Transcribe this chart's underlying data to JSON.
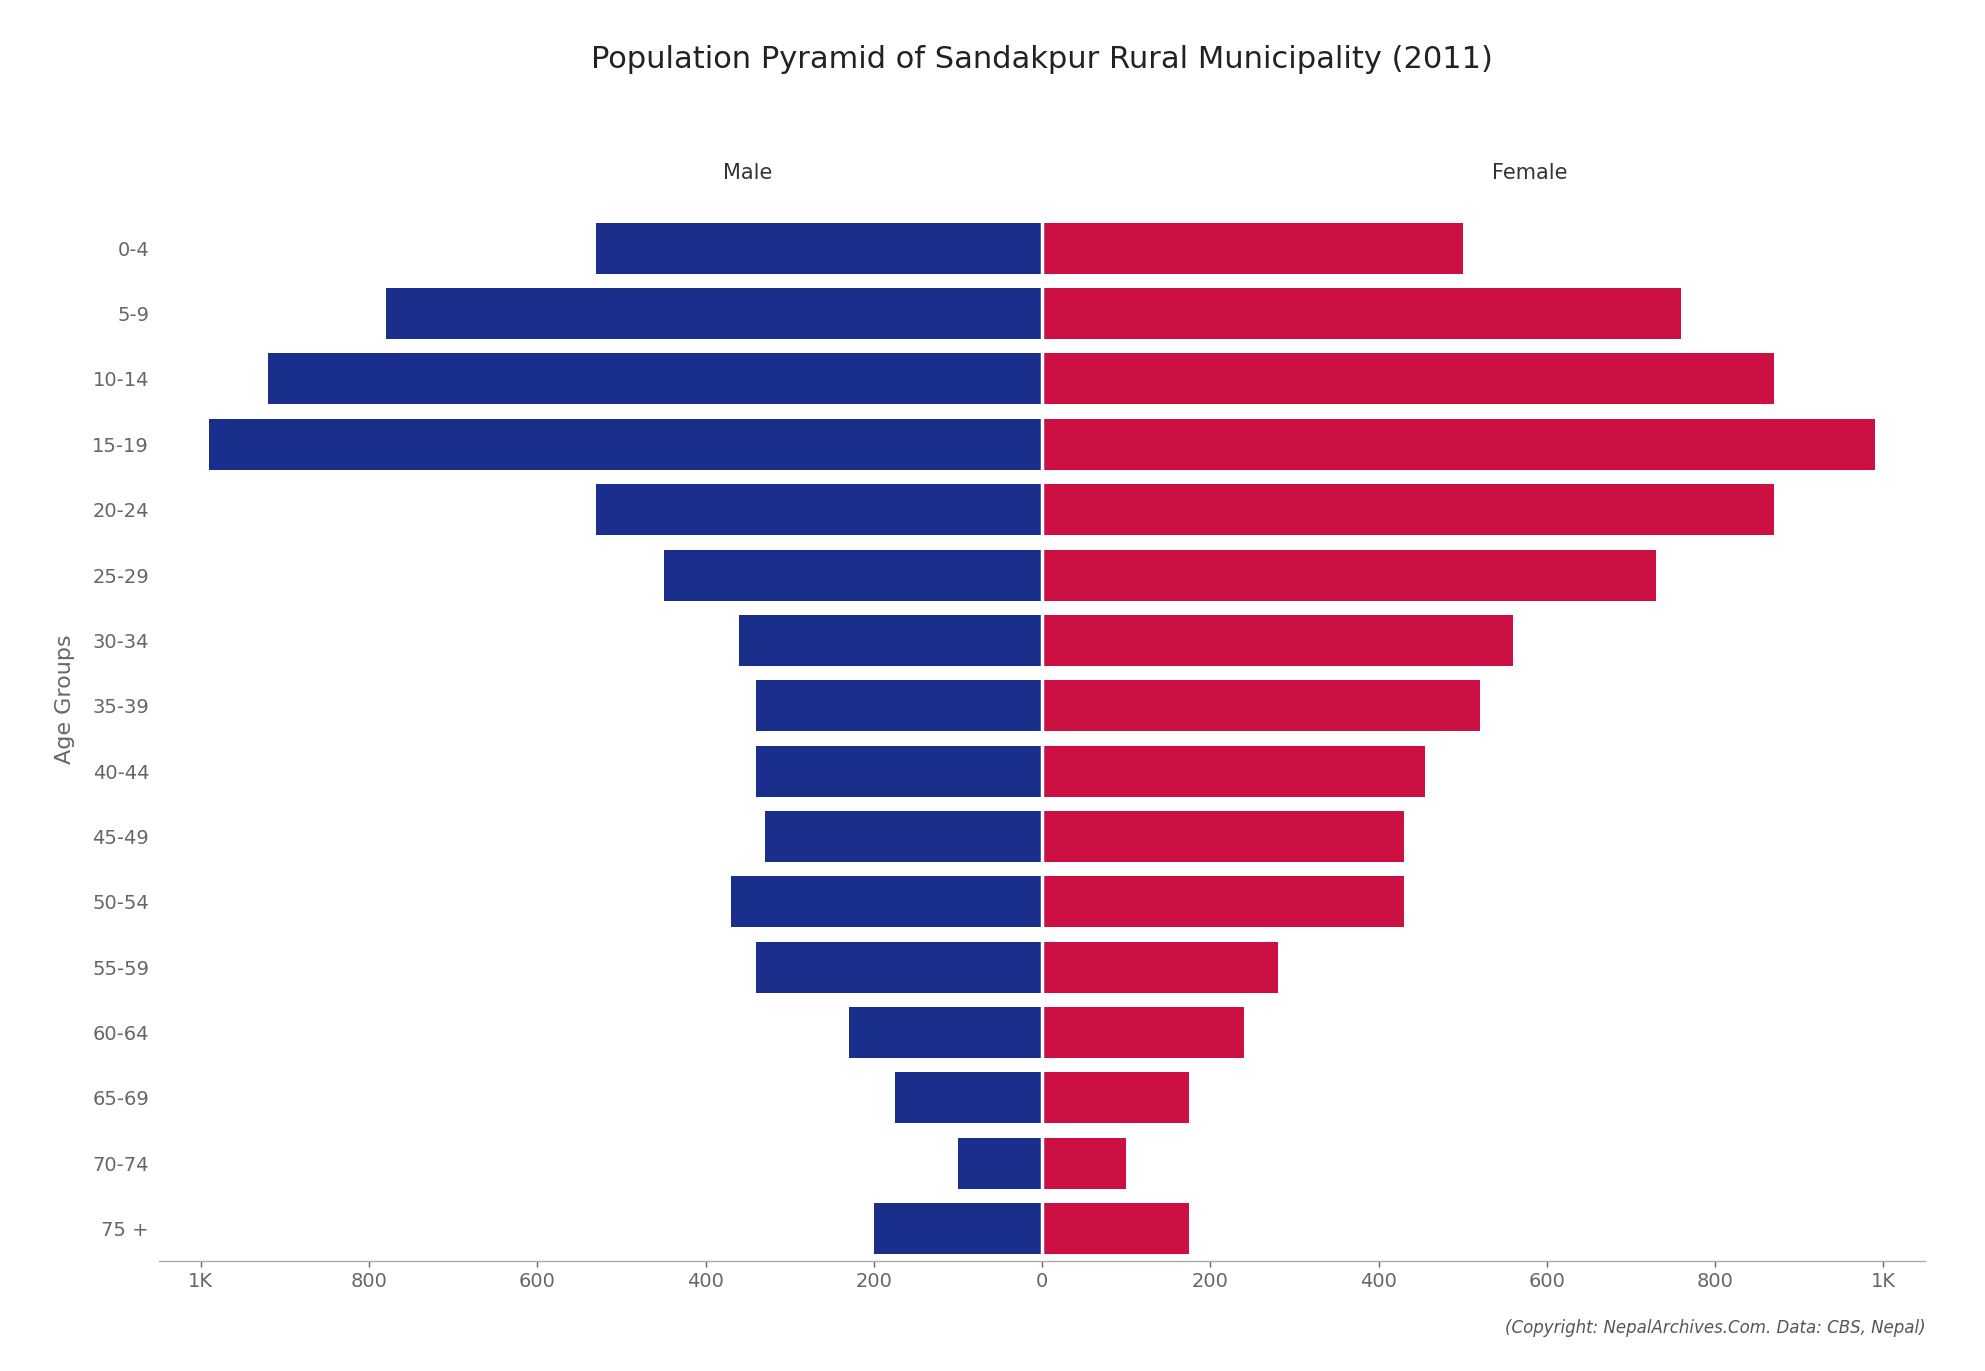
{
  "title": "Population Pyramid of Sandakpur Rural Municipality (2011)",
  "age_groups": [
    "75 +",
    "70-74",
    "65-69",
    "60-64",
    "55-59",
    "50-54",
    "45-49",
    "40-44",
    "35-39",
    "30-34",
    "25-29",
    "20-24",
    "15-19",
    "10-14",
    "5-9",
    "0-4"
  ],
  "male": [
    200,
    100,
    175,
    230,
    340,
    370,
    330,
    340,
    340,
    360,
    450,
    530,
    990,
    920,
    780,
    530
  ],
  "female": [
    175,
    100,
    175,
    240,
    280,
    430,
    430,
    455,
    520,
    560,
    730,
    870,
    990,
    870,
    760,
    500
  ],
  "male_color": "#1a2f8c",
  "female_color": "#cc1044",
  "background_color": "#ffffff",
  "xlabel_left": "Male",
  "xlabel_right": "Female",
  "ylabel": "Age Groups",
  "xlim": 1050,
  "xtick_labels": [
    "1K",
    "800",
    "600",
    "400",
    "200",
    "0",
    "200",
    "400",
    "600",
    "800",
    "1K"
  ],
  "xtick_values": [
    -1000,
    -800,
    -600,
    -400,
    -200,
    0,
    200,
    400,
    600,
    800,
    1000
  ],
  "copyright": "(Copyright: NepalArchives.Com. Data: CBS, Nepal)",
  "title_fontsize": 22,
  "axis_label_fontsize": 16,
  "tick_fontsize": 14,
  "bar_height": 0.78
}
